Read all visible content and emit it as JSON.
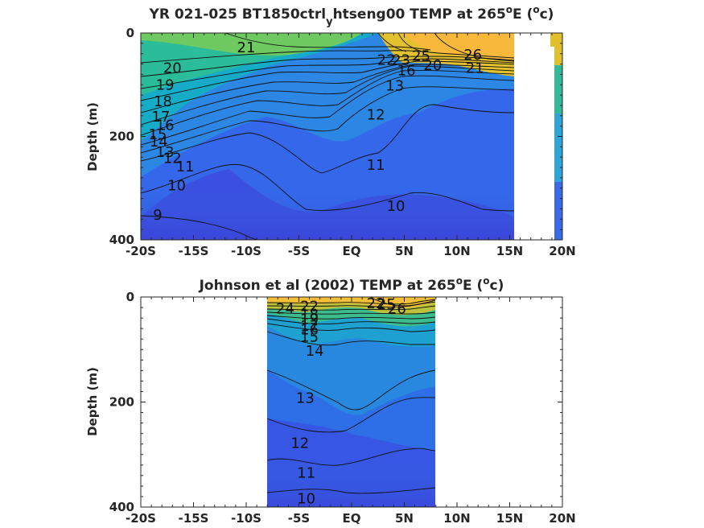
{
  "chart_data": [
    {
      "type": "heatmap",
      "subtype": "filled-contour",
      "title": "YR 021-025 BT1850ctrl_htseng00 TEMP at 265ºE (ºc)",
      "title_parts": {
        "main": "YR 021-025 BT1850ctrl",
        "sub": "y",
        "after": "htseng00 TEMP at 265",
        "deg1": "o",
        "mid": "E (",
        "deg2": "o",
        "end": "c)"
      },
      "xlabel": "",
      "ylabel": "Depth (m)",
      "xlim": [
        -20,
        20
      ],
      "ylim": [
        400,
        0
      ],
      "x_tick_values": [
        -20,
        -15,
        -10,
        -5,
        0,
        5,
        10,
        15,
        20
      ],
      "x_tick_labels": [
        "-20S",
        "-15S",
        "-10S",
        "-5S",
        "EQ",
        "5N",
        "10N",
        "15N",
        "20N"
      ],
      "y_tick_values": [
        0,
        200,
        400
      ],
      "y_tick_labels": [
        "0",
        "200",
        "400"
      ],
      "colormap": "parula",
      "color_range": [
        8,
        28
      ],
      "data_extent_x": [
        -20,
        15.5
      ],
      "contour_levels": [
        9,
        10,
        11,
        12,
        13,
        14,
        15,
        16,
        17,
        18,
        19,
        20,
        21,
        22,
        23,
        24,
        25,
        26
      ],
      "contour_labels": [
        {
          "text": "21",
          "x": -10,
          "depth": 28
        },
        {
          "text": "20",
          "x": -17,
          "depth": 68
        },
        {
          "text": "19",
          "x": -17.7,
          "depth": 100
        },
        {
          "text": "18",
          "x": -17.9,
          "depth": 132
        },
        {
          "text": "17",
          "x": -18.1,
          "depth": 162
        },
        {
          "text": "16",
          "x": -17.7,
          "depth": 178
        },
        {
          "text": "15",
          "x": -18.4,
          "depth": 196
        },
        {
          "text": "14",
          "x": -18.3,
          "depth": 210
        },
        {
          "text": "13",
          "x": -17.7,
          "depth": 230
        },
        {
          "text": "12",
          "x": -17.0,
          "depth": 242
        },
        {
          "text": "11",
          "x": -15.8,
          "depth": 258
        },
        {
          "text": "10",
          "x": -16.6,
          "depth": 295
        },
        {
          "text": "9",
          "x": -18.4,
          "depth": 352
        },
        {
          "text": "12",
          "x": 2.3,
          "depth": 158
        },
        {
          "text": "11",
          "x": 2.3,
          "depth": 255
        },
        {
          "text": "10",
          "x": 4.2,
          "depth": 335
        },
        {
          "text": "13",
          "x": 4.1,
          "depth": 102
        },
        {
          "text": "22",
          "x": 3.3,
          "depth": 52
        },
        {
          "text": "23",
          "x": 4.7,
          "depth": 52
        },
        {
          "text": "25",
          "x": 6.6,
          "depth": 44
        },
        {
          "text": "16",
          "x": 5.2,
          "depth": 72
        },
        {
          "text": "20",
          "x": 7.7,
          "depth": 62
        },
        {
          "text": "21",
          "x": 11.7,
          "depth": 68
        },
        {
          "text": "26",
          "x": 11.5,
          "depth": 42
        }
      ],
      "notes_visible_values": {
        "upper_colors": "yellow-orange warm water (~26-28) in upper 50 m north of 2N",
        "deep_colors": "blue (~9-11) below 250 m"
      }
    },
    {
      "type": "heatmap",
      "subtype": "filled-contour",
      "title": "Johnson et al (2002) TEMP at 265ºE (ºc)",
      "title_parts": {
        "main": "Johnson et al (2002) TEMP at 265",
        "deg1": "o",
        "mid": "E (",
        "deg2": "o",
        "end": "c)"
      },
      "xlabel": "",
      "ylabel": "Depth (m)",
      "xlim": [
        -20,
        20
      ],
      "ylim": [
        400,
        0
      ],
      "x_tick_values": [
        -20,
        -15,
        -10,
        -5,
        0,
        5,
        10,
        15,
        20
      ],
      "x_tick_labels": [
        "-20S",
        "-15S",
        "-10S",
        "-5S",
        "EQ",
        "5N",
        "10N",
        "15N",
        "20N"
      ],
      "y_tick_values": [
        0,
        200,
        400
      ],
      "y_tick_labels": [
        "0",
        "200",
        "400"
      ],
      "colormap": "parula",
      "color_range": [
        8,
        28
      ],
      "data_extent_x": [
        -8,
        8
      ],
      "contour_levels": [
        10,
        11,
        12,
        13,
        14,
        15,
        16,
        17,
        18,
        19,
        20,
        21,
        22,
        23,
        24,
        25,
        26
      ],
      "contour_labels": [
        {
          "text": "24",
          "x": -6.3,
          "depth": 22
        },
        {
          "text": "22",
          "x": -4,
          "depth": 18
        },
        {
          "text": "18",
          "x": -4,
          "depth": 33
        },
        {
          "text": "19",
          "x": -4,
          "depth": 42
        },
        {
          "text": "17",
          "x": -4,
          "depth": 55
        },
        {
          "text": "16",
          "x": -4,
          "depth": 62
        },
        {
          "text": "15",
          "x": -4,
          "depth": 76
        },
        {
          "text": "14",
          "x": -3.5,
          "depth": 103
        },
        {
          "text": "22",
          "x": 2.3,
          "depth": 12
        },
        {
          "text": "25",
          "x": 3.3,
          "depth": 14
        },
        {
          "text": "26",
          "x": 4.3,
          "depth": 22
        },
        {
          "text": "13",
          "x": -4.4,
          "depth": 192
        },
        {
          "text": "12",
          "x": -4.9,
          "depth": 278
        },
        {
          "text": "11",
          "x": -4.3,
          "depth": 335
        },
        {
          "text": "10",
          "x": -4.3,
          "depth": 384
        }
      ]
    }
  ]
}
